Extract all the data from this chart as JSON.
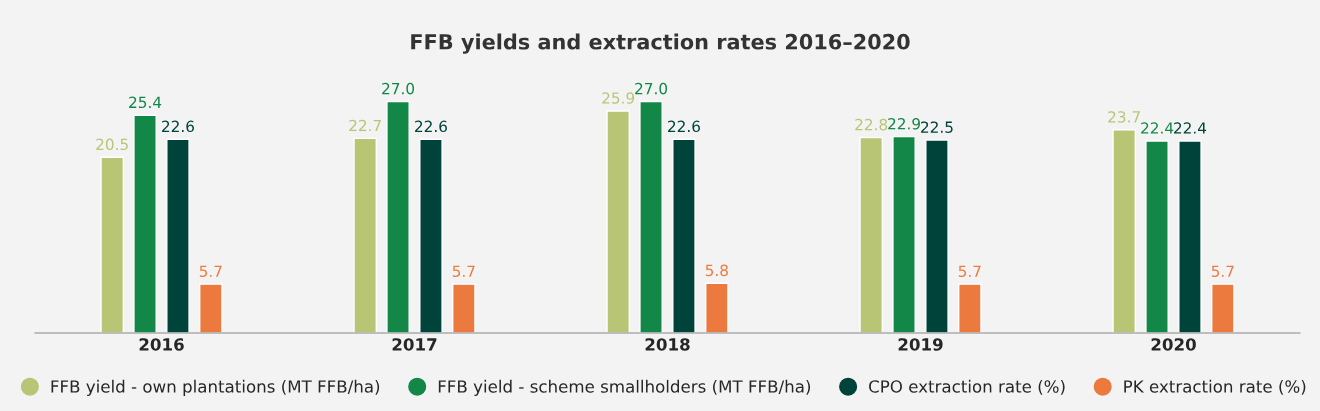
{
  "chart_data": {
    "type": "bar",
    "title": "FFB yields and extraction rates 2016–2020",
    "categories": [
      "2016",
      "2017",
      "2018",
      "2019",
      "2020"
    ],
    "series": [
      {
        "name": "FFB yield - own plantations (MT FFB/ha)",
        "color": "#b8c575",
        "values": [
          20.5,
          22.7,
          25.9,
          22.8,
          23.7
        ],
        "value_labels": [
          "20.5",
          "22.7",
          "25.9",
          "22.8",
          "23.7"
        ]
      },
      {
        "name": "FFB yield - scheme smallholders (MT FFB/ha)",
        "color": "#138748",
        "values": [
          25.4,
          27.0,
          27.0,
          22.9,
          22.4
        ],
        "value_labels": [
          "25.4",
          "27.0",
          "27.0",
          "22.9",
          "22.4"
        ]
      },
      {
        "name": "CPO extraction rate (%)",
        "color": "#00433a",
        "values": [
          22.6,
          22.6,
          22.6,
          22.5,
          22.4
        ],
        "value_labels": [
          "22.6",
          "22.6",
          "22.6",
          "22.5",
          "22.4"
        ]
      },
      {
        "name": "PK extraction rate (%)",
        "color": "#ec7a3e",
        "values": [
          5.7,
          5.7,
          5.8,
          5.7,
          5.7
        ],
        "value_labels": [
          "5.7",
          "5.7",
          "5.8",
          "5.7",
          "5.7"
        ]
      }
    ],
    "tick_labels": "x",
    "grid": false,
    "legend": "bottom"
  }
}
